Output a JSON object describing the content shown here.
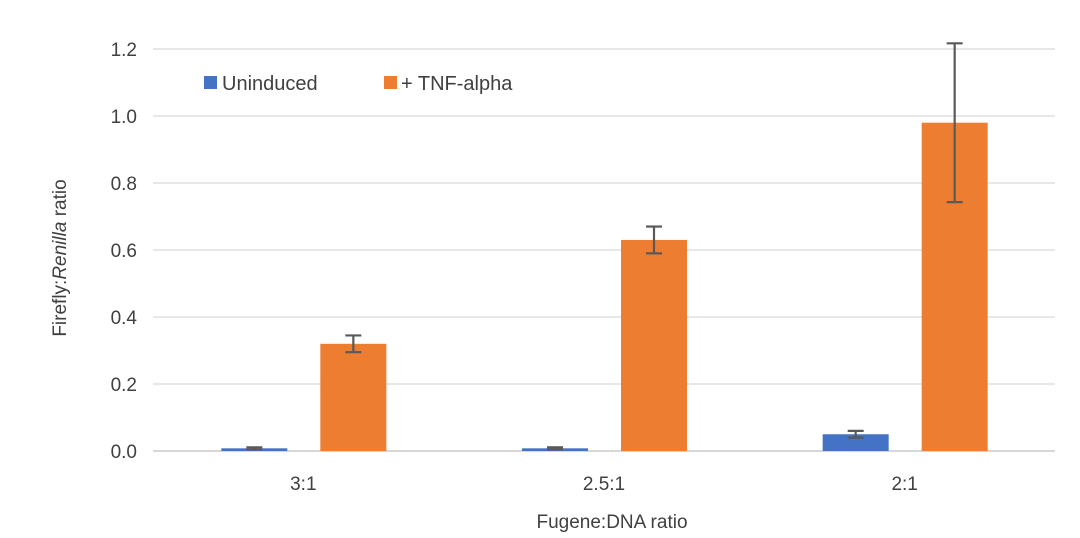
{
  "chart_data": {
    "type": "bar",
    "title": "",
    "xlabel": "Fugene:DNA ratio",
    "ylabel_parts": [
      "Firefly:",
      "Renilla",
      " ratio"
    ],
    "ylim": [
      0,
      1.2
    ],
    "ytick_step": 0.2,
    "ytick_labels": [
      "0.0",
      "0.2",
      "0.4",
      "0.6",
      "0.8",
      "1.0",
      "1.2"
    ],
    "grid": true,
    "legend_position": "top-left",
    "categories": [
      "3:1",
      "2.5:1",
      "2:1"
    ],
    "series": [
      {
        "name": "Uninduced",
        "color": "#4472C4",
        "values": [
          0.008,
          0.008,
          0.05
        ],
        "errors": [
          0.003,
          0.003,
          0.01
        ]
      },
      {
        "name": "+ TNF-alpha",
        "color": "#ED7D31",
        "values": [
          0.32,
          0.63,
          0.98
        ],
        "errors": [
          0.025,
          0.04,
          0.237
        ]
      }
    ]
  }
}
